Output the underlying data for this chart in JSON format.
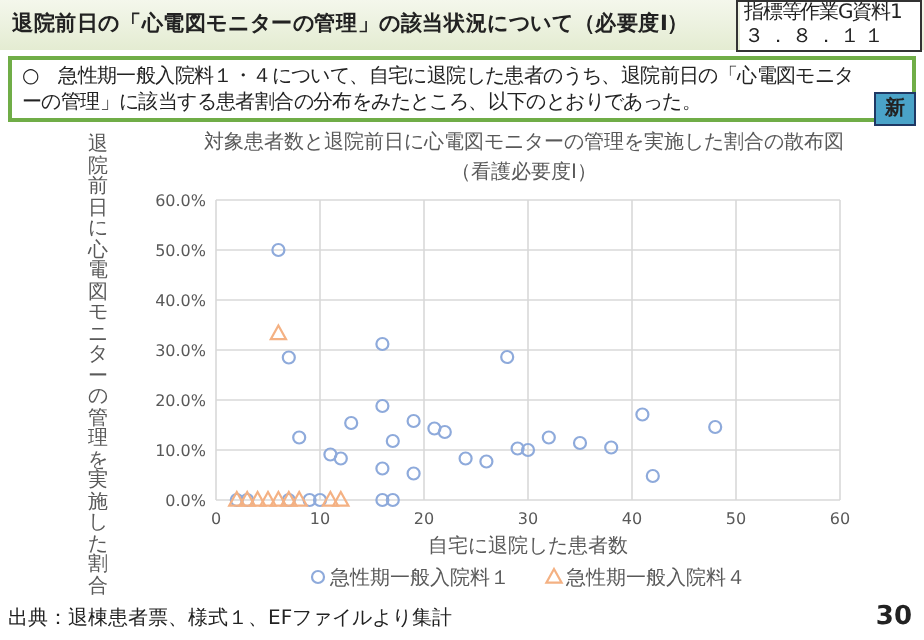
{
  "chart_data": {
    "type": "scatter",
    "title": "対象患者数と退院前日に心電図モニターの管理を実施した割合の散布図",
    "subtitle": "（看護必要度Ⅰ）",
    "xlabel": "自宅に退院した患者数",
    "ylabel": "退院前日に心電図モニターの管理を実施した割合",
    "annotations": [
      "退院前日の「心電図モニターの管理」の該当状況について（必要度Ⅰ）",
      "指標等作業G資料1",
      "３．８．１１",
      "○　急性期一般入院料１・４について、自宅に退院した患者のうち、退院前日の「心電図モニターの管理」に該当する患者割合の分布をみたところ、以下のとおりであった。",
      "新",
      "出典：退棟患者票、様式１、EFファイルより集計",
      "30"
    ],
    "xlim": [
      0,
      60
    ],
    "xticks": [
      0,
      10,
      20,
      30,
      40,
      50,
      60
    ],
    "ylim": [
      0,
      60
    ],
    "yticks": [
      {
        "value": 0,
        "label": "0.0%"
      },
      {
        "value": 10,
        "label": "10.0%"
      },
      {
        "value": 20,
        "label": "20.0%"
      },
      {
        "value": 30,
        "label": "30.0%"
      },
      {
        "value": 40,
        "label": "40.0%"
      },
      {
        "value": 50,
        "label": "50.0%"
      },
      {
        "value": 60,
        "label": "60.0%"
      }
    ],
    "grid": true,
    "legend": "bottom",
    "series": [
      {
        "name": "急性期一般入院料１",
        "color": "#8eaadb",
        "marker": "circle",
        "x": [
          2,
          3,
          6,
          7,
          7,
          8,
          9,
          10,
          11,
          12,
          13,
          16,
          16,
          16,
          16,
          17,
          17,
          19,
          19,
          21,
          22,
          24,
          26,
          28,
          29,
          30,
          32,
          35,
          38,
          41,
          42,
          48
        ],
        "values": [
          0,
          0,
          50,
          28.5,
          0,
          12.5,
          0,
          0,
          9.1,
          8.3,
          15.4,
          31.2,
          18.8,
          6.3,
          0,
          11.8,
          0,
          15.8,
          5.3,
          14.3,
          13.6,
          8.3,
          7.7,
          28.6,
          10.3,
          10,
          12.5,
          11.4,
          10.5,
          17.1,
          4.8,
          14.6
        ]
      },
      {
        "name": "急性期一般入院料４",
        "color": "#f4b183",
        "marker": "triangle",
        "x": [
          2,
          3,
          4,
          5,
          6,
          6,
          7,
          8,
          11,
          12
        ],
        "values": [
          0,
          0,
          0,
          0,
          0,
          33.3,
          0,
          0,
          0,
          0
        ]
      }
    ]
  }
}
